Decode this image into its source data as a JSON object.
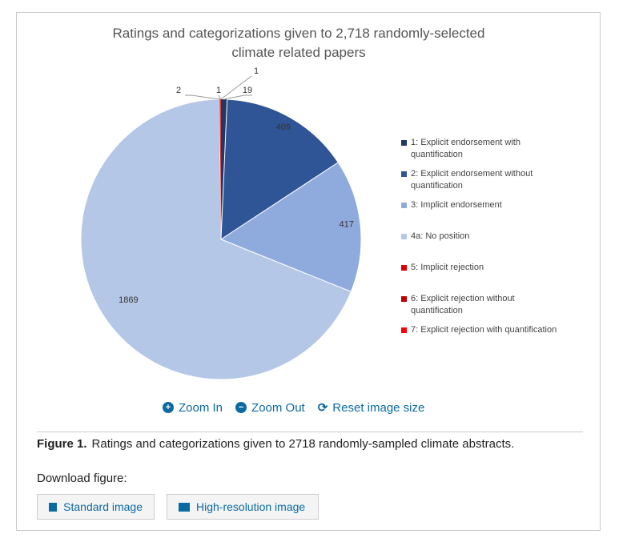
{
  "chart_data": {
    "type": "pie",
    "title": "Ratings and categorizations given to 2,718 randomly-selected climate related papers",
    "title_lines": [
      "Ratings and categorizations given to 2,718 randomly-selected",
      "climate related papers"
    ],
    "start": "top",
    "direction": "clockwise",
    "slices": [
      {
        "name": "1: Explicit endorsement with quantification",
        "value": 19,
        "color": "#1f3864"
      },
      {
        "name": "2: Explicit endorsement without quantification",
        "value": 409,
        "color": "#2f5597"
      },
      {
        "name": "3: Implicit endorsement",
        "value": 417,
        "color": "#8faadc"
      },
      {
        "name": "4a: No position",
        "value": 1869,
        "color": "#b4c7e7"
      },
      {
        "name": "5: Implicit rejection",
        "value": 2,
        "color": "#e00000"
      },
      {
        "name": "6: Explicit rejection without quantification",
        "value": 1,
        "color": "#c00000"
      },
      {
        "name": "7: Explicit rejection with quantification",
        "value": 1,
        "color": "#ff0000"
      }
    ],
    "legend": "right"
  },
  "tools": {
    "zoom_in": "Zoom In",
    "zoom_out": "Zoom Out",
    "reset": "Reset image size"
  },
  "caption": {
    "label": "Figure 1.",
    "text": "Ratings and categorizations given to 2718 randomly-sampled climate abstracts."
  },
  "download": {
    "label": "Download figure:",
    "standard": "Standard image",
    "high_res": "High-resolution image"
  }
}
